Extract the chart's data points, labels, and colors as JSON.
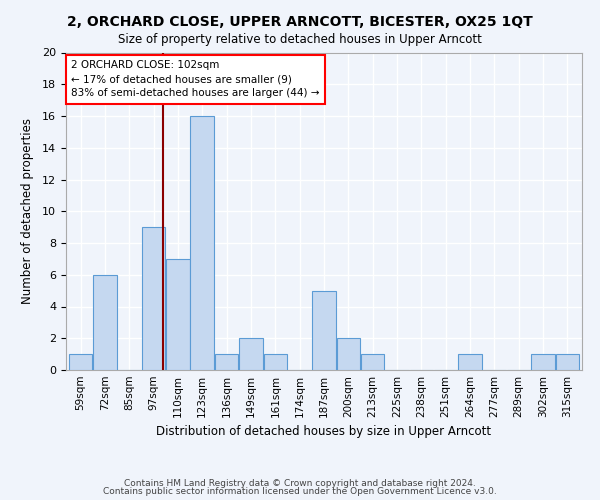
{
  "title": "2, ORCHARD CLOSE, UPPER ARNCOTT, BICESTER, OX25 1QT",
  "subtitle": "Size of property relative to detached houses in Upper Arncott",
  "xlabel": "Distribution of detached houses by size in Upper Arncott",
  "ylabel": "Number of detached properties",
  "bar_labels": [
    "59sqm",
    "72sqm",
    "85sqm",
    "97sqm",
    "110sqm",
    "123sqm",
    "136sqm",
    "149sqm",
    "161sqm",
    "174sqm",
    "187sqm",
    "200sqm",
    "213sqm",
    "225sqm",
    "238sqm",
    "251sqm",
    "264sqm",
    "277sqm",
    "289sqm",
    "302sqm",
    "315sqm"
  ],
  "bar_values": [
    1,
    6,
    0,
    9,
    7,
    16,
    1,
    2,
    1,
    0,
    5,
    2,
    1,
    0,
    0,
    0,
    1,
    0,
    0,
    1,
    1
  ],
  "bar_color": "#c5d8f0",
  "bar_edge_color": "#5b9bd5",
  "annotation_line1": "2 ORCHARD CLOSE: 102sqm",
  "annotation_line2": "← 17% of detached houses are smaller (9)",
  "annotation_line3": "83% of semi-detached houses are larger (44) →",
  "annotation_box_color": "white",
  "annotation_box_edge_color": "red",
  "vline_bar_index": 3,
  "vline_color": "#8b0000",
  "ylim": [
    0,
    20
  ],
  "yticks": [
    0,
    2,
    4,
    6,
    8,
    10,
    12,
    14,
    16,
    18,
    20
  ],
  "background_color": "#f0f4fb",
  "grid_color": "#ffffff",
  "footer_line1": "Contains HM Land Registry data © Crown copyright and database right 2024.",
  "footer_line2": "Contains public sector information licensed under the Open Government Licence v3.0."
}
